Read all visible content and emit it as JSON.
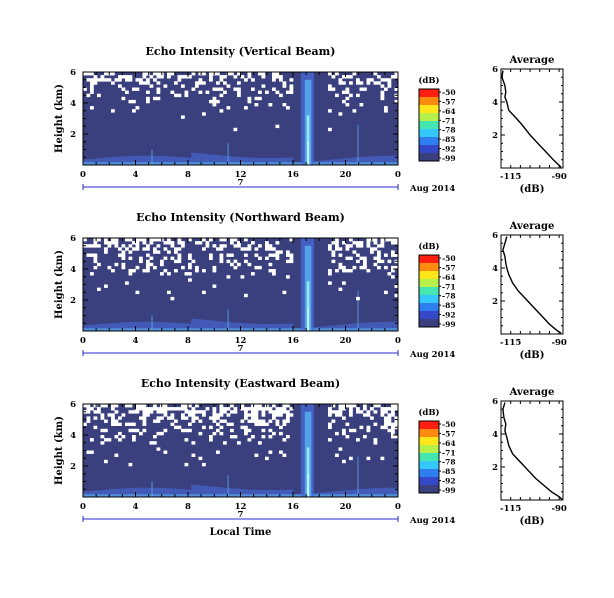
{
  "chart_data": [
    {
      "type": "heatmap",
      "panel": "vertical",
      "title": "Echo Intensity (Vertical Beam)",
      "ylabel": "Height (km)",
      "xlabel": "",
      "x_ticks": [
        "0",
        "4",
        "8",
        "12",
        "16",
        "20",
        "0"
      ],
      "y_ticks": [
        "6",
        "4",
        "2"
      ],
      "xlim_hours": [
        0,
        24
      ],
      "ylim_km": [
        0,
        6
      ],
      "date_day": "7",
      "date_label": "Aug 2014",
      "colorbar": {
        "label": "(dB)",
        "ticks": [
          "-50",
          "-57",
          "-64",
          "-71",
          "-78",
          "-85",
          "-92",
          "-99"
        ],
        "range": [
          -99,
          -50
        ]
      },
      "average_profile": {
        "title": "Average",
        "xlabel": "(dB)",
        "x_ticks": [
          "-115",
          "-90"
        ],
        "y_ticks": [
          "6",
          "4",
          "2"
        ],
        "xlim": [
          -120,
          -88
        ],
        "ylim": [
          0,
          6
        ],
        "x": [
          -119,
          -119.5,
          -118,
          -117.5,
          -118,
          -117,
          -116,
          -112,
          -109,
          -105,
          -101,
          -97,
          -93,
          -89
        ],
        "y": [
          5.9,
          5.5,
          5.0,
          4.6,
          4.3,
          4.0,
          3.5,
          3.0,
          2.6,
          2.0,
          1.5,
          1.0,
          0.5,
          0.05
        ]
      }
    },
    {
      "type": "heatmap",
      "panel": "northward",
      "title": "Echo Intensity (Northward Beam)",
      "ylabel": "Height (km)",
      "xlabel": "",
      "x_ticks": [
        "0",
        "4",
        "8",
        "12",
        "16",
        "20",
        "0"
      ],
      "y_ticks": [
        "6",
        "4",
        "2"
      ],
      "xlim_hours": [
        0,
        24
      ],
      "ylim_km": [
        0,
        6
      ],
      "date_day": "7",
      "date_label": "Aug 2014",
      "colorbar": {
        "label": "(dB)",
        "ticks": [
          "-50",
          "-57",
          "-64",
          "-71",
          "-78",
          "-85",
          "-92",
          "-99"
        ],
        "range": [
          -99,
          -50
        ]
      },
      "average_profile": {
        "title": "Average",
        "xlabel": "(dB)",
        "x_ticks": [
          "-115",
          "-90"
        ],
        "y_ticks": [
          "6",
          "4",
          "2"
        ],
        "xlim": [
          -120,
          -88
        ],
        "ylim": [
          0,
          6
        ],
        "x": [
          -117,
          -118,
          -119,
          -118,
          -117.5,
          -117,
          -116,
          -114,
          -111,
          -107,
          -103,
          -99,
          -95,
          -91,
          -89
        ],
        "y": [
          5.9,
          5.5,
          5.1,
          4.7,
          4.3,
          4.0,
          3.6,
          3.1,
          2.6,
          2.1,
          1.6,
          1.1,
          0.6,
          0.2,
          0.05
        ]
      }
    },
    {
      "type": "heatmap",
      "panel": "eastward",
      "title": "Echo Intensity (Eastward Beam)",
      "ylabel": "Height (km)",
      "xlabel": "Local Time",
      "x_ticks": [
        "0",
        "4",
        "8",
        "12",
        "16",
        "20",
        "0"
      ],
      "y_ticks": [
        "6",
        "4",
        "2"
      ],
      "xlim_hours": [
        0,
        24
      ],
      "ylim_km": [
        0,
        6
      ],
      "date_day": "7",
      "date_label": "Aug 2014",
      "colorbar": {
        "label": "(dB)",
        "ticks": [
          "-50",
          "-57",
          "-64",
          "-71",
          "-78",
          "-85",
          "-92",
          "-99"
        ],
        "range": [
          -99,
          -50
        ]
      },
      "average_profile": {
        "title": "Average",
        "xlabel": "(dB)",
        "x_ticks": [
          "-115",
          "-90"
        ],
        "y_ticks": [
          "6",
          "4",
          "2"
        ],
        "xlim": [
          -120,
          -88
        ],
        "ylim": [
          0,
          6
        ],
        "x": [
          -118,
          -119,
          -118.5,
          -117.5,
          -118,
          -117,
          -116,
          -114,
          -110,
          -106,
          -102,
          -98,
          -94,
          -90,
          -88.5
        ],
        "y": [
          5.9,
          5.5,
          5.0,
          4.6,
          4.2,
          3.8,
          3.3,
          2.8,
          2.3,
          1.8,
          1.3,
          0.9,
          0.5,
          0.2,
          0.05
        ]
      }
    }
  ],
  "colors": {
    "background": "#39407d",
    "gap": "#ffffff",
    "echo_low": "#4a6be0",
    "echo_mid": "#58b4f0",
    "echo_high": "#9ff0f5",
    "date_axis": "#2a2ad0"
  }
}
